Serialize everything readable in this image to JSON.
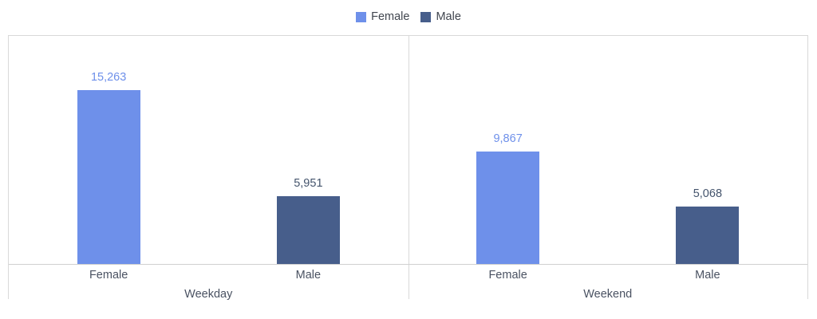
{
  "legend": {
    "position": "top-center",
    "items": [
      {
        "label": "Female",
        "color": "#6e90ea"
      },
      {
        "label": "Male",
        "color": "#475e8b"
      }
    ],
    "text_color": "#41464f"
  },
  "chart_data": {
    "type": "bar",
    "title": "",
    "xlabel": "",
    "ylabel": "",
    "ylim": [
      0,
      20000
    ],
    "grid": "off",
    "y_axis_visible": false,
    "legend_position": "top-center",
    "series": [
      {
        "name": "Female",
        "color": "#6e90ea",
        "label_color": "#6e90ea"
      },
      {
        "name": "Male",
        "color": "#475e8b",
        "label_color": "#44546c"
      }
    ],
    "groups": [
      {
        "label": "Weekday",
        "categories": [
          "Female",
          "Male"
        ],
        "values": [
          15263,
          5951
        ],
        "value_labels": [
          "15,263",
          "5,951"
        ]
      },
      {
        "label": "Weekend",
        "categories": [
          "Female",
          "Male"
        ],
        "values": [
          9867,
          5068
        ],
        "value_labels": [
          "9,867",
          "5,068"
        ]
      }
    ]
  },
  "frame_colors": {
    "border": "#d9d9d9",
    "axis_line": "#d0d0d0",
    "category_text": "#4a5262"
  }
}
